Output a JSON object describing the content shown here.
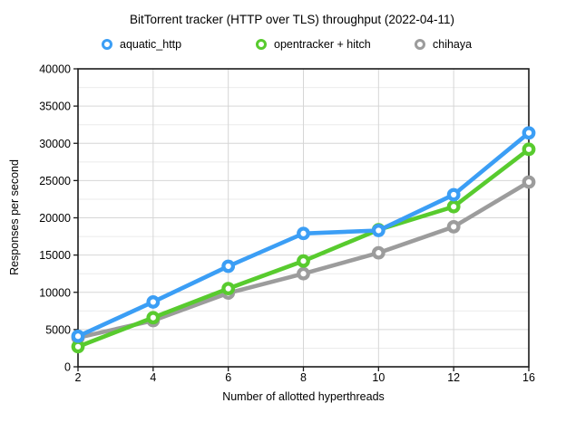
{
  "chart_data": {
    "type": "line",
    "title": "BitTorrent tracker (HTTP over TLS) throughput (2022-04-11)",
    "xlabel": "Number of allotted hyperthreads",
    "ylabel": "Responses per second",
    "categories": [
      2,
      4,
      6,
      8,
      10,
      12,
      16
    ],
    "x_tick_labels": [
      "2",
      "4",
      "6",
      "8",
      "10",
      "12",
      "16"
    ],
    "ylim": [
      0,
      40000
    ],
    "yticks": [
      0,
      5000,
      10000,
      15000,
      20000,
      25000,
      30000,
      35000,
      40000
    ],
    "minor_y_step": 2500,
    "grid": true,
    "legend_position": "top",
    "marker_style": "donut",
    "series": [
      {
        "name": "aquatic_http",
        "color": "#3b9ef5",
        "values": [
          4100,
          8700,
          13500,
          17900,
          18300,
          23100,
          31400
        ]
      },
      {
        "name": "opentracker + hitch",
        "color": "#58cb2e",
        "values": [
          2700,
          6600,
          10500,
          14200,
          18400,
          21500,
          29200
        ]
      },
      {
        "name": "chihaya",
        "color": "#9c9c9c",
        "values": [
          3900,
          6200,
          9900,
          12500,
          15300,
          18800,
          24800
        ]
      }
    ],
    "colors": {
      "frame": "#1a1a1a",
      "major_grid": "#d6d6d6",
      "minor_grid": "#ebebeb",
      "text": "#000000"
    }
  }
}
